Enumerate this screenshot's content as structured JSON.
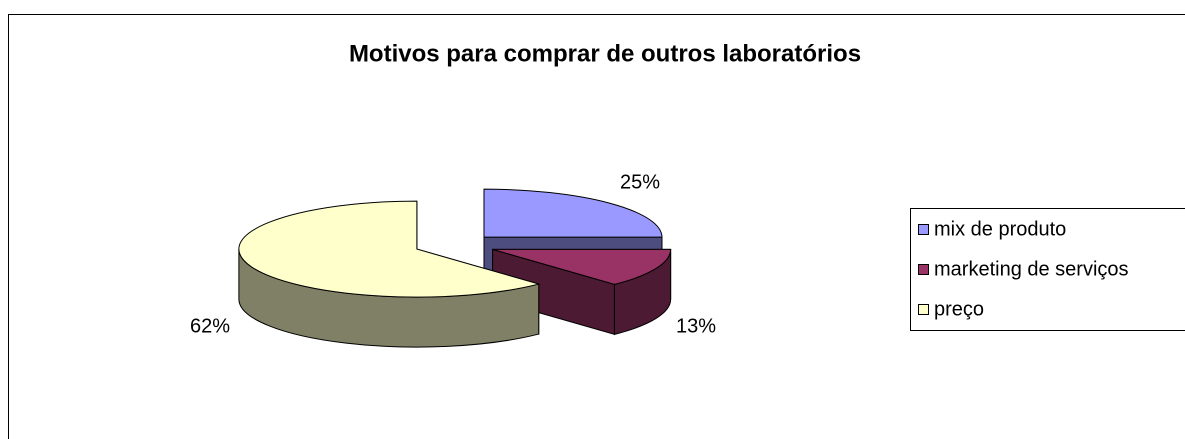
{
  "chart_data": {
    "type": "pie3d",
    "title": "Motivos para comprar de outros laboratórios",
    "categories": [
      "mix de produto",
      "marketing de serviços",
      "preço"
    ],
    "values": [
      25,
      13,
      62
    ],
    "value_labels": [
      "25%",
      "13%",
      "62%"
    ],
    "colors": [
      "#9999ff",
      "#993366",
      "#ffffcc"
    ],
    "legend": "right"
  }
}
